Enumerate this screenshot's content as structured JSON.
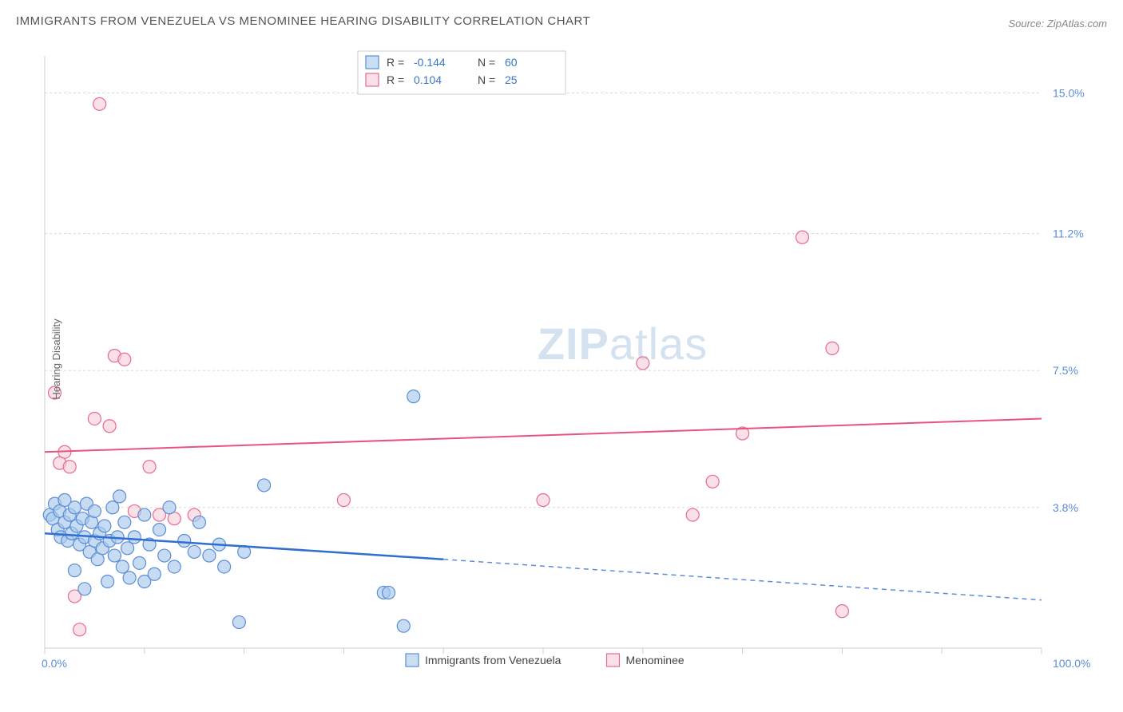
{
  "title": "IMMIGRANTS FROM VENEZUELA VS MENOMINEE HEARING DISABILITY CORRELATION CHART",
  "source": "Source: ZipAtlas.com",
  "watermark": {
    "bold": "ZIP",
    "rest": "atlas"
  },
  "chart": {
    "type": "scatter",
    "x_axis": {
      "min": 0,
      "max": 100,
      "ticks": [
        0,
        10,
        20,
        30,
        40,
        50,
        60,
        70,
        80,
        90,
        100
      ],
      "label_min": "0.0%",
      "label_max": "100.0%"
    },
    "y_axis": {
      "label": "Hearing Disability",
      "min": 0,
      "max": 16.0,
      "grid": [
        3.8,
        7.5,
        11.2,
        15.0
      ],
      "grid_labels": [
        "3.8%",
        "7.5%",
        "11.2%",
        "15.0%"
      ]
    },
    "colors": {
      "blue_fill": "#a9c9eb",
      "blue_stroke": "#5b8dd6",
      "blue_trend": "#2f6fd0",
      "pink_fill": "#f7cdd8",
      "pink_stroke": "#e76a92",
      "pink_trend": "#e7547e",
      "grid": "#d8d8d8",
      "axis": "#cfcfcf",
      "text": "#444",
      "value_text": "#3a74c4",
      "background": "#ffffff"
    },
    "marker_radius": 8,
    "legend_top": {
      "series": [
        {
          "color": "blue",
          "r_label": "R =",
          "r_value": "-0.144",
          "n_label": "N =",
          "n_value": "60"
        },
        {
          "color": "pink",
          "r_label": "R =",
          "r_value": "0.104",
          "n_label": "N =",
          "n_value": "25"
        }
      ]
    },
    "legend_bottom": {
      "items": [
        {
          "color": "blue",
          "label": "Immigrants from Venezuela"
        },
        {
          "color": "pink",
          "label": "Menominee"
        }
      ]
    },
    "series": {
      "blue": {
        "label": "Immigrants from Venezuela",
        "trend": {
          "y_at_x0": 3.1,
          "y_at_x40": 2.4,
          "y_at_x100": 1.3,
          "solid_until_x": 40
        },
        "points": [
          [
            0.5,
            3.6
          ],
          [
            0.8,
            3.5
          ],
          [
            1.0,
            3.9
          ],
          [
            1.3,
            3.2
          ],
          [
            1.5,
            3.7
          ],
          [
            1.6,
            3.0
          ],
          [
            2.0,
            3.4
          ],
          [
            2.0,
            4.0
          ],
          [
            2.3,
            2.9
          ],
          [
            2.5,
            3.6
          ],
          [
            2.7,
            3.1
          ],
          [
            3.0,
            3.8
          ],
          [
            3.0,
            2.1
          ],
          [
            3.2,
            3.3
          ],
          [
            3.5,
            2.8
          ],
          [
            3.8,
            3.5
          ],
          [
            4.0,
            3.0
          ],
          [
            4.0,
            1.6
          ],
          [
            4.2,
            3.9
          ],
          [
            4.5,
            2.6
          ],
          [
            4.7,
            3.4
          ],
          [
            5.0,
            2.9
          ],
          [
            5.0,
            3.7
          ],
          [
            5.3,
            2.4
          ],
          [
            5.5,
            3.1
          ],
          [
            5.8,
            2.7
          ],
          [
            6.0,
            3.3
          ],
          [
            6.3,
            1.8
          ],
          [
            6.5,
            2.9
          ],
          [
            6.8,
            3.8
          ],
          [
            7.0,
            2.5
          ],
          [
            7.3,
            3.0
          ],
          [
            7.5,
            4.1
          ],
          [
            7.8,
            2.2
          ],
          [
            8.0,
            3.4
          ],
          [
            8.3,
            2.7
          ],
          [
            8.5,
            1.9
          ],
          [
            9.0,
            3.0
          ],
          [
            9.5,
            2.3
          ],
          [
            10.0,
            3.6
          ],
          [
            10.0,
            1.8
          ],
          [
            10.5,
            2.8
          ],
          [
            11.0,
            2.0
          ],
          [
            11.5,
            3.2
          ],
          [
            12.0,
            2.5
          ],
          [
            12.5,
            3.8
          ],
          [
            13.0,
            2.2
          ],
          [
            14.0,
            2.9
          ],
          [
            15.0,
            2.6
          ],
          [
            15.5,
            3.4
          ],
          [
            16.5,
            2.5
          ],
          [
            17.5,
            2.8
          ],
          [
            18.0,
            2.2
          ],
          [
            19.5,
            0.7
          ],
          [
            20.0,
            2.6
          ],
          [
            22.0,
            4.4
          ],
          [
            34.0,
            1.5
          ],
          [
            34.5,
            1.5
          ],
          [
            36.0,
            0.6
          ],
          [
            37.0,
            6.8
          ]
        ]
      },
      "pink": {
        "label": "Menominee",
        "trend": {
          "y_at_x0": 5.3,
          "y_at_x100": 6.2
        },
        "points": [
          [
            1.0,
            6.9
          ],
          [
            1.5,
            5.0
          ],
          [
            2.0,
            5.3
          ],
          [
            2.5,
            4.9
          ],
          [
            3.0,
            1.4
          ],
          [
            3.5,
            0.5
          ],
          [
            5.0,
            6.2
          ],
          [
            5.5,
            14.7
          ],
          [
            6.5,
            6.0
          ],
          [
            7.0,
            7.9
          ],
          [
            8.0,
            7.8
          ],
          [
            9.0,
            3.7
          ],
          [
            10.5,
            4.9
          ],
          [
            11.5,
            3.6
          ],
          [
            13.0,
            3.5
          ],
          [
            15.0,
            3.6
          ],
          [
            30.0,
            4.0
          ],
          [
            50.0,
            4.0
          ],
          [
            60.0,
            7.7
          ],
          [
            65.0,
            3.6
          ],
          [
            67.0,
            4.5
          ],
          [
            70.0,
            5.8
          ],
          [
            76.0,
            11.1
          ],
          [
            79.0,
            8.1
          ],
          [
            80.0,
            1.0
          ]
        ]
      }
    }
  }
}
